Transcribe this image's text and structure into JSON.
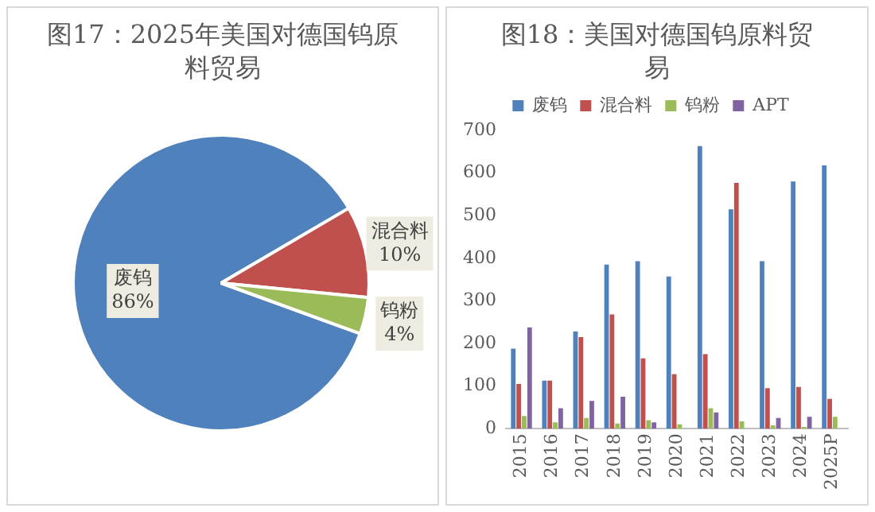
{
  "chart_data": [
    {
      "type": "pie",
      "title": "图17：2025年美国对德国钨原料贸易",
      "categories": [
        "废钨",
        "混合料",
        "钨粉"
      ],
      "values": [
        86,
        10,
        4
      ],
      "colors": [
        "#4f81bd",
        "#c0504d",
        "#9bbb59"
      ],
      "value_labels": [
        "86%",
        "10%",
        "4%"
      ],
      "legend": false
    },
    {
      "type": "bar",
      "title": "图18：美国对德国钨原料贸易",
      "categories": [
        "2015",
        "2016",
        "2017",
        "2018",
        "2019",
        "2020",
        "2021",
        "2022",
        "2023",
        "2024",
        "2025P"
      ],
      "series": [
        {
          "name": "废钨",
          "color": "#4f81bd",
          "values": [
            188,
            113,
            228,
            385,
            393,
            357,
            663,
            515,
            393,
            580,
            618
          ]
        },
        {
          "name": "混合料",
          "color": "#c0504d",
          "values": [
            105,
            113,
            215,
            268,
            165,
            128,
            175,
            577,
            95,
            98,
            70
          ]
        },
        {
          "name": "钨粉",
          "color": "#9bbb59",
          "values": [
            30,
            15,
            25,
            12,
            20,
            10,
            48,
            17,
            8,
            4,
            28
          ]
        },
        {
          "name": "APT",
          "color": "#8064a2",
          "values": [
            238,
            48,
            65,
            75,
            15,
            null,
            38,
            null,
            25,
            28,
            null
          ]
        }
      ],
      "ylim": [
        0,
        700
      ],
      "yticks": [
        0,
        100,
        200,
        300,
        400,
        500,
        600,
        700
      ],
      "grid": false,
      "legend": "top"
    }
  ]
}
